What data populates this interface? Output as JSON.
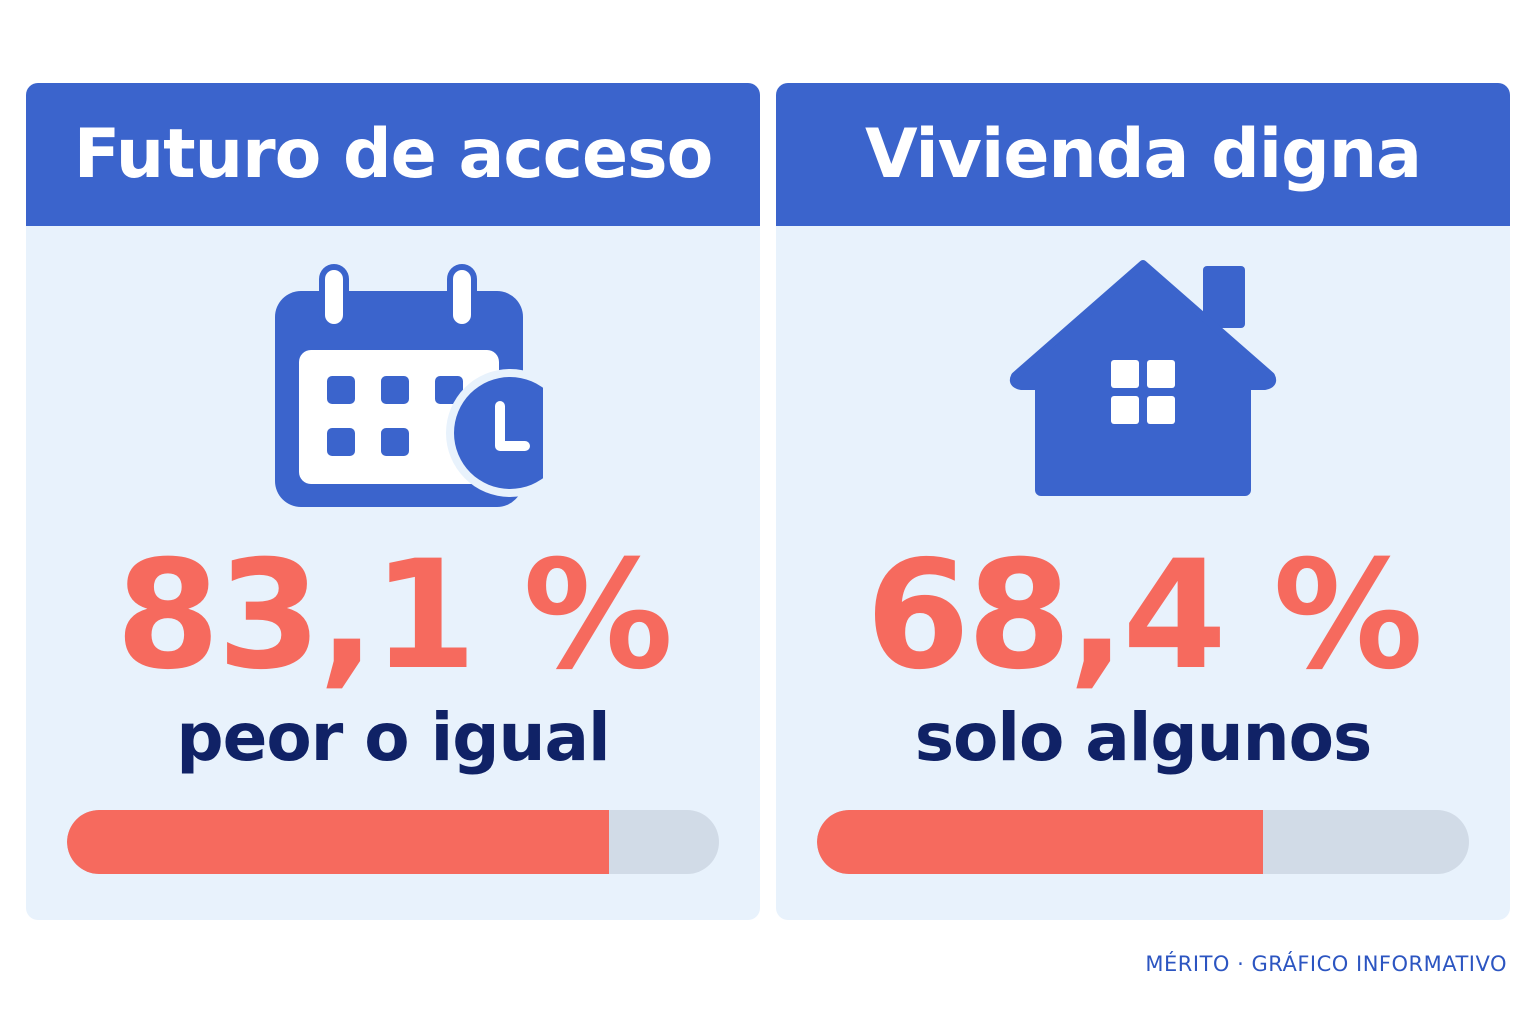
{
  "colors": {
    "header_blue": "#3b64cc",
    "card_background": "#e8f2fc",
    "accent_red": "#f66a5e",
    "caption_navy": "#102266",
    "bar_track": "#d1dbe7"
  },
  "cards": [
    {
      "title": "Futuro de acceso",
      "icon": "calendar-clock-icon",
      "value": "83,1 %",
      "caption": "peor o igual",
      "bar_fraction": 0.831
    },
    {
      "title": "Vivienda digna",
      "icon": "house-icon",
      "value": "68,4 %",
      "caption": "solo algunos",
      "bar_fraction": 0.684
    }
  ],
  "footer": {
    "credit": "MÉRITO · GRÁFICO INFORMATIVO"
  }
}
